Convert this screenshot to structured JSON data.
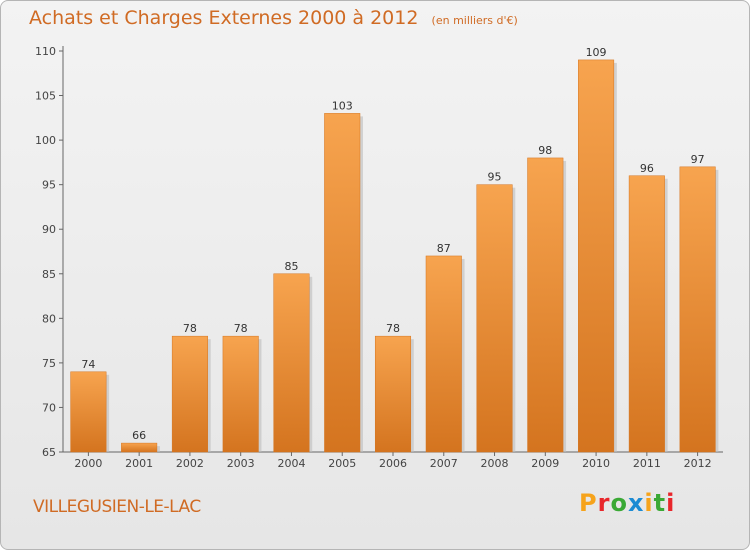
{
  "header": {
    "title": "Achats et Charges Externes 2000 à 2012",
    "unit_note": "(en milliers d'€)"
  },
  "footer": {
    "town": "VILLEGUSIEN-LE-LAC",
    "logo_text": "Proxiti",
    "logo_colors": [
      "#f6a31b",
      "#e8262b",
      "#3aa935",
      "#1c8bd3",
      "#f6a31b",
      "#3aa935",
      "#e8262b"
    ]
  },
  "colors": {
    "bar": "#f0922f",
    "bar_light": "#f7a44f",
    "bar_dark": "#d4741f",
    "title": "#d06b24"
  },
  "chart_data": {
    "type": "bar",
    "title": "Achats et Charges Externes 2000 à 2012",
    "subtitle": "(en milliers d'€)",
    "xlabel": "",
    "ylabel": "",
    "categories": [
      "2000",
      "2001",
      "2002",
      "2003",
      "2004",
      "2005",
      "2006",
      "2007",
      "2008",
      "2009",
      "2010",
      "2011",
      "2012"
    ],
    "values": [
      74,
      66,
      78,
      78,
      85,
      103,
      78,
      87,
      95,
      98,
      109,
      96,
      97
    ],
    "ylim": [
      65,
      110
    ],
    "yticks": [
      65,
      70,
      75,
      80,
      85,
      90,
      95,
      100,
      105,
      110
    ],
    "grid": false,
    "legend": "none"
  }
}
